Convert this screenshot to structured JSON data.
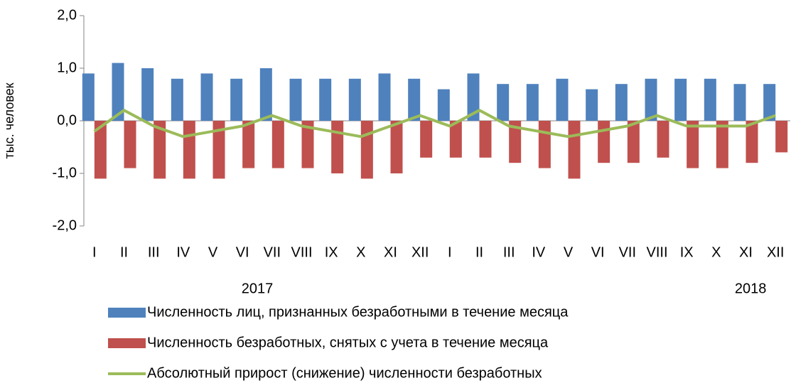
{
  "chart_data": {
    "type": "bar_line",
    "y_label": "тыс. человек",
    "categories": [
      "I",
      "II",
      "III",
      "IV",
      "V",
      "VI",
      "VII",
      "VIII",
      "IX",
      "X",
      "XI",
      "XII",
      "I",
      "II",
      "III",
      "IV",
      "V",
      "VI",
      "VII",
      "VIII",
      "IX",
      "X",
      "XI",
      "XII"
    ],
    "groups": [
      "2017",
      "2018"
    ],
    "series": [
      {
        "name": "Численность лиц, признанных безработными в течение месяца",
        "type": "bar",
        "color": "#4f81bd",
        "values": [
          0.9,
          1.1,
          1.0,
          0.8,
          0.9,
          0.8,
          1.0,
          0.8,
          0.8,
          0.8,
          0.9,
          0.8,
          0.6,
          0.9,
          0.7,
          0.7,
          0.8,
          0.6,
          0.7,
          0.8,
          0.8,
          0.8,
          0.7,
          0.7
        ]
      },
      {
        "name": "Численность безработных, снятых с учета в течение месяца",
        "type": "bar",
        "color": "#c0504d",
        "values": [
          -1.1,
          -0.9,
          -1.1,
          -1.1,
          -1.1,
          -0.9,
          -0.9,
          -0.9,
          -1.0,
          -1.1,
          -1.0,
          -0.7,
          -0.7,
          -0.7,
          -0.8,
          -0.9,
          -1.1,
          -0.8,
          -0.8,
          -0.7,
          -0.9,
          -0.9,
          -0.8,
          -0.6
        ]
      },
      {
        "name": "Абсолютный прирост (снижение) численности безработных",
        "type": "line",
        "color": "#9bbb59",
        "values": [
          -0.2,
          0.2,
          -0.1,
          -0.3,
          -0.2,
          -0.1,
          0.1,
          -0.1,
          -0.2,
          -0.3,
          -0.1,
          0.1,
          -0.1,
          0.2,
          -0.1,
          -0.2,
          -0.3,
          -0.2,
          -0.1,
          0.1,
          -0.1,
          -0.1,
          -0.1,
          0.1
        ]
      }
    ],
    "ylim": [
      -2,
      2
    ],
    "yticks": [
      {
        "value": -2,
        "label": "-2,0"
      },
      {
        "value": -1,
        "label": "-1,0"
      },
      {
        "value": 0,
        "label": "0,0"
      },
      {
        "value": 1,
        "label": "1,0"
      },
      {
        "value": 2,
        "label": "2,0"
      }
    ]
  }
}
